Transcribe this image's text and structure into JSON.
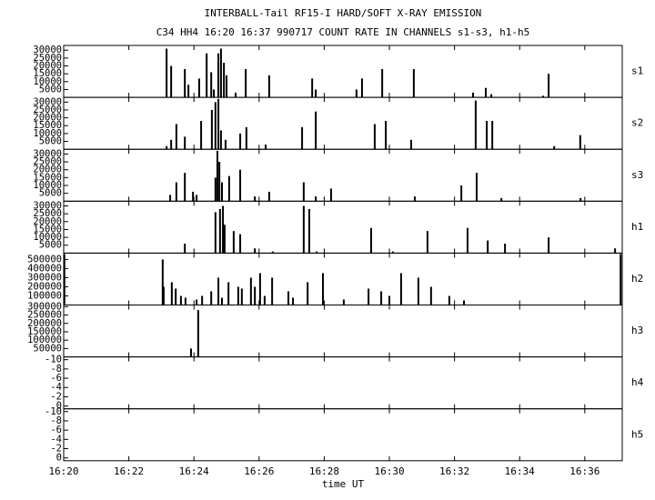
{
  "title": "INTERBALL-Tail RF15-I HARD/SOFT X-RAY EMISSION",
  "subtitle": "C34 HH4 16:20 16:37 990717  COUNT RATE IN CHANNELS s1-s3, h1-h5",
  "xlabel": "time UT",
  "xlim": [
    20,
    37.15
  ],
  "xticks": [
    {
      "value": 20,
      "label": "16:20"
    },
    {
      "value": 22,
      "label": "16:22"
    },
    {
      "value": 24,
      "label": "16:24"
    },
    {
      "value": 26,
      "label": "16:26"
    },
    {
      "value": 28,
      "label": "16:28"
    },
    {
      "value": 30,
      "label": "16:30"
    },
    {
      "value": 32,
      "label": "16:32"
    },
    {
      "value": 34,
      "label": "16:34"
    },
    {
      "value": 36,
      "label": "16:36"
    }
  ],
  "chart_data": [
    {
      "type": "bar",
      "label": "s1",
      "color": "#000000",
      "ylim": [
        0,
        33000
      ],
      "yticks": [
        5000,
        10000,
        15000,
        20000,
        25000,
        30000
      ],
      "x": [
        23.16,
        23.3,
        23.72,
        23.83,
        24.16,
        24.39,
        24.53,
        24.61,
        24.75,
        24.83,
        24.92,
        25.0,
        25.28,
        25.59,
        26.31,
        27.63,
        27.74,
        28.99,
        29.16,
        29.78,
        30.75,
        32.57,
        32.96,
        33.13,
        34.72,
        34.89
      ],
      "values": [
        31000,
        20000,
        18000,
        8000,
        12000,
        28000,
        16000,
        5000,
        28000,
        31000,
        22000,
        14000,
        3000,
        18000,
        14000,
        12000,
        5000,
        5000,
        12000,
        18000,
        18000,
        3000,
        6000,
        2000,
        1000,
        15000
      ]
    },
    {
      "type": "bar",
      "label": "s2",
      "color": "#000000",
      "ylim": [
        0,
        33000
      ],
      "yticks": [
        5000,
        10000,
        15000,
        20000,
        25000,
        30000
      ],
      "x": [
        23.16,
        23.3,
        23.46,
        23.72,
        24.22,
        24.55,
        24.66,
        24.75,
        24.83,
        24.97,
        25.42,
        25.61,
        26.2,
        27.32,
        27.74,
        29.55,
        29.89,
        30.67,
        32.65,
        32.99,
        33.16,
        35.06,
        35.86
      ],
      "values": [
        2000,
        6000,
        16000,
        8000,
        18000,
        25000,
        30000,
        32000,
        12000,
        6000,
        10000,
        14000,
        3000,
        14000,
        24000,
        16000,
        18000,
        6000,
        31000,
        18000,
        18000,
        2000,
        9000
      ]
    },
    {
      "type": "bar",
      "label": "s3",
      "color": "#000000",
      "ylim": [
        0,
        33000
      ],
      "yticks": [
        5000,
        10000,
        15000,
        20000,
        25000,
        30000
      ],
      "x": [
        23.27,
        23.46,
        23.72,
        23.97,
        24.08,
        24.66,
        24.72,
        24.78,
        24.86,
        25.08,
        25.42,
        25.87,
        26.31,
        27.37,
        27.74,
        28.21,
        30.78,
        32.21,
        32.68,
        33.44,
        35.87
      ],
      "values": [
        4000,
        12000,
        18000,
        6000,
        4000,
        15000,
        32000,
        25000,
        12000,
        16000,
        20000,
        3000,
        6000,
        12000,
        3000,
        8000,
        3000,
        10000,
        18000,
        2000,
        2000
      ]
    },
    {
      "type": "bar",
      "label": "h1",
      "color": "#000000",
      "ylim": [
        0,
        33000
      ],
      "yticks": [
        5000,
        10000,
        15000,
        20000,
        25000,
        30000
      ],
      "x": [
        23.72,
        24.66,
        24.8,
        24.89,
        24.94,
        25.22,
        25.42,
        25.87,
        26.42,
        27.37,
        27.54,
        27.77,
        29.44,
        30.11,
        31.17,
        32.4,
        33.02,
        33.55,
        34.89,
        36.93
      ],
      "values": [
        6000,
        26000,
        28000,
        30000,
        18000,
        14000,
        12000,
        3000,
        1000,
        30000,
        28000,
        1000,
        16000,
        1000,
        14000,
        16000,
        8000,
        6000,
        10000,
        3000
      ]
    },
    {
      "type": "bar",
      "label": "h2",
      "color": "#000000",
      "ylim": [
        0,
        570000
      ],
      "yticks": [
        100000,
        200000,
        300000,
        400000,
        500000
      ],
      "x": [
        20.02,
        23.04,
        23.07,
        23.32,
        23.44,
        23.6,
        23.74,
        24.08,
        24.25,
        24.53,
        24.75,
        24.86,
        25.06,
        25.36,
        25.47,
        25.75,
        25.87,
        26.03,
        26.17,
        26.4,
        26.9,
        27.04,
        27.49,
        27.96,
        28.6,
        29.36,
        29.75,
        30.0,
        30.36,
        30.89,
        31.28,
        31.84,
        32.29,
        37.1
      ],
      "values": [
        560000,
        500000,
        200000,
        250000,
        180000,
        100000,
        80000,
        60000,
        100000,
        150000,
        300000,
        80000,
        250000,
        200000,
        180000,
        300000,
        200000,
        350000,
        100000,
        300000,
        150000,
        80000,
        250000,
        350000,
        60000,
        180000,
        150000,
        100000,
        350000,
        300000,
        200000,
        100000,
        50000,
        560000
      ]
    },
    {
      "type": "bar",
      "label": "h3",
      "color": "#000000",
      "ylim": [
        0,
        310000
      ],
      "yticks": [
        50000,
        100000,
        150000,
        200000,
        250000,
        300000
      ],
      "x": [
        23.91,
        24.13
      ],
      "values": [
        50000,
        280000
      ]
    },
    {
      "type": "bar",
      "label": "h4",
      "color": "#000000",
      "ylim": [
        0.6,
        -10.6
      ],
      "yticks": [
        -10,
        -8,
        -6,
        -4,
        -2,
        0
      ],
      "x": [],
      "values": []
    },
    {
      "type": "bar",
      "label": "h5",
      "color": "#000000",
      "ylim": [
        0.6,
        -10.6
      ],
      "yticks": [
        -10,
        -8,
        -6,
        -4,
        -2,
        0
      ],
      "x": [],
      "values": []
    }
  ]
}
